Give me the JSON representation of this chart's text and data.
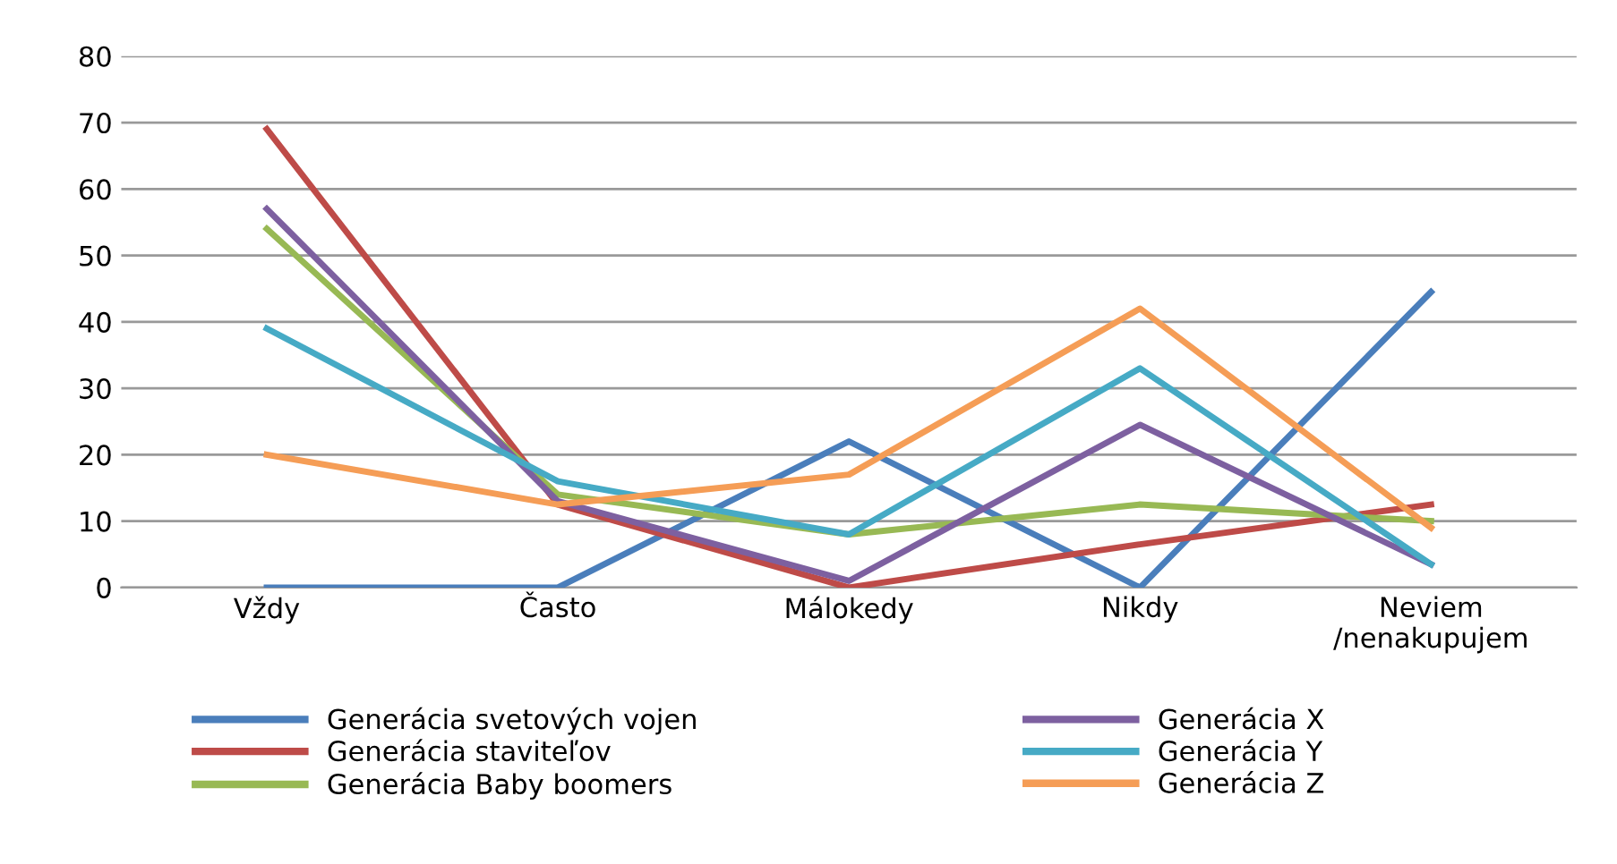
{
  "chart_data": {
    "type": "line",
    "categories": [
      "Vždy",
      "Často",
      "Málokedy",
      "Nikdy",
      "Neviem\n/nenakupujem"
    ],
    "series": [
      {
        "name": "Generácia svetových vojen",
        "color": "#4a7ebb",
        "values": [
          0,
          0,
          22,
          0,
          44.5
        ]
      },
      {
        "name": "Generácia staviteľov",
        "color": "#be4b48",
        "values": [
          69,
          12.5,
          0,
          6.5,
          12.5
        ]
      },
      {
        "name": "Generácia Baby boomers",
        "color": "#98b954",
        "values": [
          54,
          14,
          8,
          12.5,
          10
        ]
      },
      {
        "name": "Generácia X",
        "color": "#7d60a0",
        "values": [
          57,
          13,
          1,
          24.5,
          3.5
        ]
      },
      {
        "name": "Generácia Y",
        "color": "#46aac5",
        "values": [
          39,
          16,
          8,
          33,
          3.5
        ]
      },
      {
        "name": "Generácia Z",
        "color": "#f59d56",
        "values": [
          20,
          12.5,
          17,
          42,
          9
        ]
      }
    ],
    "ylim": [
      0,
      80
    ],
    "yticks": [
      0,
      10,
      20,
      30,
      40,
      50,
      60,
      70,
      80
    ],
    "grid": "y",
    "legend": "bottom",
    "marker": "none",
    "line_style": "solid"
  }
}
